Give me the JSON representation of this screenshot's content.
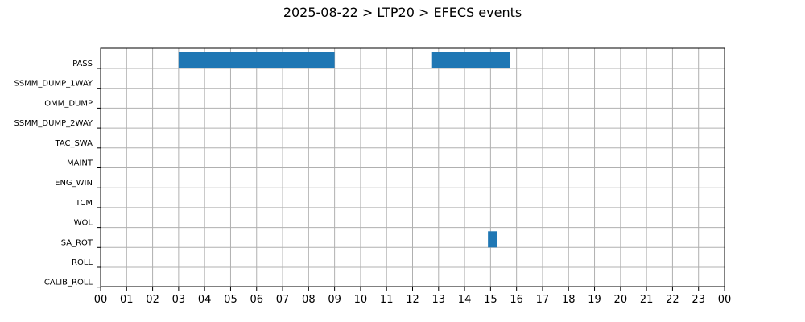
{
  "chart_data": {
    "type": "gantt",
    "title": "2025-08-22 > LTP20 > EFECS events",
    "x_unit": "hour of day",
    "xlim": [
      0,
      24
    ],
    "x_tick_labels": [
      "00",
      "01",
      "02",
      "03",
      "04",
      "05",
      "06",
      "07",
      "08",
      "09",
      "10",
      "11",
      "12",
      "13",
      "14",
      "15",
      "16",
      "17",
      "18",
      "19",
      "20",
      "21",
      "22",
      "23",
      "00"
    ],
    "categories": [
      "PASS",
      "SSMM_DUMP_1WAY",
      "OMM_DUMP",
      "SSMM_DUMP_2WAY",
      "TAC_SWA",
      "MAINT",
      "ENG_WIN",
      "TCM",
      "WOL",
      "SA_ROT",
      "ROLL",
      "CALIB_ROLL"
    ],
    "grid": true,
    "bar_color": "#1f77b4",
    "events": [
      {
        "category": "PASS",
        "start": 3.0,
        "end": 9.0
      },
      {
        "category": "PASS",
        "start": 12.75,
        "end": 15.75
      },
      {
        "category": "SA_ROT",
        "start": 14.9,
        "end": 15.25
      }
    ]
  }
}
